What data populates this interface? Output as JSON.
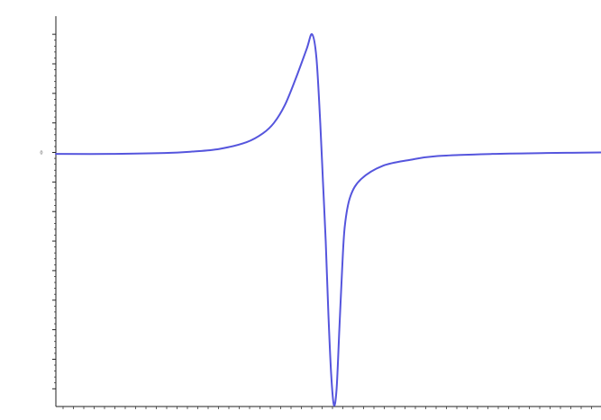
{
  "chart_data": {
    "type": "line",
    "title": "",
    "xlabel": "",
    "ylabel": "",
    "corner_label": "",
    "x_range": [
      0,
      1
    ],
    "y_range": [
      -8.6,
      4.4
    ],
    "y_ticks": [
      {
        "value": 4,
        "label": ""
      },
      {
        "value": 3,
        "label": ""
      },
      {
        "value": 2,
        "label": ""
      },
      {
        "value": 1,
        "label": ""
      },
      {
        "value": 0,
        "label": "0"
      },
      {
        "value": -1,
        "label": ""
      },
      {
        "value": -2,
        "label": ""
      },
      {
        "value": -3,
        "label": ""
      },
      {
        "value": -4,
        "label": ""
      },
      {
        "value": -5,
        "label": ""
      },
      {
        "value": -6,
        "label": ""
      },
      {
        "value": -7,
        "label": ""
      },
      {
        "value": -8,
        "label": ""
      }
    ],
    "x_ticks": [
      {
        "value": 0.06,
        "label": ""
      },
      {
        "value": 0.23,
        "label": ""
      },
      {
        "value": 0.4,
        "label": ""
      },
      {
        "value": 0.57,
        "label": ""
      },
      {
        "value": 0.74,
        "label": ""
      },
      {
        "value": 0.91,
        "label": ""
      }
    ],
    "grid": false,
    "legend": "none",
    "series": [
      {
        "color": "#5555dd",
        "points": [
          [
            0.0,
            -0.05
          ],
          [
            0.1,
            -0.05
          ],
          [
            0.2,
            -0.02
          ],
          [
            0.25,
            0.03
          ],
          [
            0.3,
            0.12
          ],
          [
            0.35,
            0.35
          ],
          [
            0.38,
            0.65
          ],
          [
            0.4,
            1.0
          ],
          [
            0.42,
            1.6
          ],
          [
            0.44,
            2.5
          ],
          [
            0.46,
            3.5
          ],
          [
            0.47,
            4.0
          ],
          [
            0.478,
            3.2
          ],
          [
            0.485,
            1.0
          ],
          [
            0.49,
            -1.0
          ],
          [
            0.495,
            -3.0
          ],
          [
            0.5,
            -5.5
          ],
          [
            0.505,
            -7.5
          ],
          [
            0.51,
            -8.55
          ],
          [
            0.515,
            -8.0
          ],
          [
            0.52,
            -6.0
          ],
          [
            0.525,
            -4.0
          ],
          [
            0.53,
            -2.5
          ],
          [
            0.54,
            -1.5
          ],
          [
            0.56,
            -0.9
          ],
          [
            0.6,
            -0.45
          ],
          [
            0.65,
            -0.25
          ],
          [
            0.7,
            -0.12
          ],
          [
            0.8,
            -0.05
          ],
          [
            0.9,
            -0.02
          ],
          [
            1.0,
            0.0
          ]
        ]
      }
    ]
  }
}
